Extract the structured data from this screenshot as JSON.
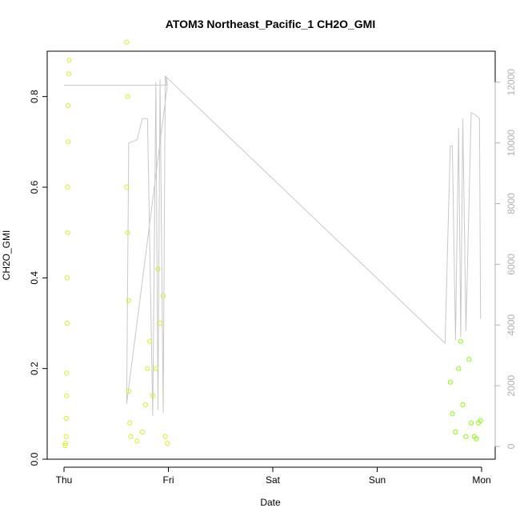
{
  "chart_data": {
    "type": "scatter",
    "title": "ATOM3 Northeast_Pacific_1 CH2O_GMI",
    "xlabel": "Date",
    "ylabel": "CH2O_GMI",
    "x_ticks": [
      "Thu",
      "Fri",
      "Sat",
      "Sun",
      "Mon"
    ],
    "x_domain_days": [
      0,
      4
    ],
    "ylim": [
      0,
      0.9
    ],
    "y_ticks": [
      "0.0",
      "0.2",
      "0.4",
      "0.6",
      "0.8"
    ],
    "y2lim": [
      0,
      12600
    ],
    "y2_ticks": [
      "0",
      "2000",
      "4000",
      "6000",
      "8000",
      "10000",
      "12000"
    ],
    "colors": {
      "early": "#ddee22",
      "late": "#88ff00",
      "altitude_line": "#c8c8c8"
    },
    "series": [
      {
        "color": "early",
        "points": [
          [
            0.01,
            0.03
          ],
          [
            0.015,
            0.035
          ],
          [
            0.02,
            0.05
          ],
          [
            0.02,
            0.09
          ],
          [
            0.025,
            0.14
          ],
          [
            0.025,
            0.19
          ],
          [
            0.03,
            0.3
          ],
          [
            0.03,
            0.4
          ],
          [
            0.035,
            0.5
          ],
          [
            0.035,
            0.6
          ],
          [
            0.04,
            0.7
          ],
          [
            0.04,
            0.78
          ],
          [
            0.045,
            0.85
          ],
          [
            0.05,
            0.88
          ],
          [
            0.6,
            0.6
          ],
          [
            0.61,
            0.5
          ],
          [
            0.62,
            0.35
          ],
          [
            0.62,
            0.15
          ],
          [
            0.63,
            0.08
          ],
          [
            0.64,
            0.05
          ],
          [
            0.6,
            0.92
          ],
          [
            0.61,
            0.8
          ],
          [
            0.7,
            0.04
          ],
          [
            0.75,
            0.06
          ],
          [
            0.78,
            0.12
          ],
          [
            0.8,
            0.2
          ],
          [
            0.82,
            0.26
          ],
          [
            0.85,
            0.14
          ],
          [
            0.88,
            0.2
          ],
          [
            0.9,
            0.42
          ],
          [
            0.92,
            0.3
          ],
          [
            0.95,
            0.36
          ],
          [
            0.97,
            0.05
          ],
          [
            0.99,
            0.035
          ]
        ]
      },
      {
        "color": "late",
        "points": [
          [
            3.7,
            0.17
          ],
          [
            3.72,
            0.1
          ],
          [
            3.75,
            0.06
          ],
          [
            3.78,
            0.2
          ],
          [
            3.8,
            0.26
          ],
          [
            3.82,
            0.12
          ],
          [
            3.85,
            0.05
          ],
          [
            3.88,
            0.22
          ],
          [
            3.9,
            0.08
          ],
          [
            3.93,
            0.05
          ],
          [
            3.95,
            0.045
          ],
          [
            3.97,
            0.08
          ],
          [
            3.99,
            0.085
          ]
        ]
      }
    ],
    "altitude_series": {
      "points": [
        [
          0.0,
          11900
        ],
        [
          0.98,
          11900
        ],
        [
          0.98,
          12200
        ],
        [
          0.99,
          11900
        ],
        [
          0.6,
          1400
        ],
        [
          0.62,
          10000
        ],
        [
          0.7,
          10100
        ],
        [
          0.75,
          10800
        ],
        [
          0.8,
          10800
        ],
        [
          0.85,
          1000
        ],
        [
          0.88,
          12000
        ],
        [
          0.9,
          1200
        ],
        [
          0.92,
          12100
        ],
        [
          0.95,
          1100
        ],
        [
          0.97,
          12200
        ],
        [
          3.65,
          3400
        ],
        [
          3.7,
          9900
        ],
        [
          3.72,
          9900
        ],
        [
          3.75,
          3500
        ],
        [
          3.78,
          10500
        ],
        [
          3.8,
          3600
        ],
        [
          3.82,
          10800
        ],
        [
          3.85,
          3800
        ],
        [
          3.9,
          11000
        ],
        [
          3.95,
          10900
        ],
        [
          3.98,
          10800
        ],
        [
          3.99,
          4200
        ]
      ]
    }
  }
}
